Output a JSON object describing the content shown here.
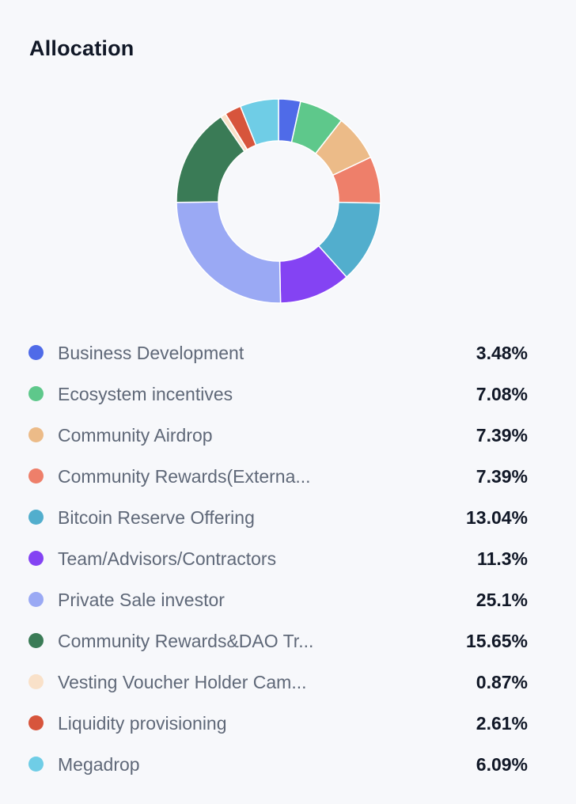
{
  "header": {
    "title": "Allocation"
  },
  "chart_data": {
    "type": "pie",
    "variant": "donut",
    "title": "Allocation",
    "unit": "%",
    "categories": [
      "Business Development",
      "Ecosystem incentives",
      "Community Airdrop",
      "Community Rewards(Externa...",
      "Bitcoin Reserve Offering",
      "Team/Advisors/Contractors",
      "Private Sale investor",
      "Community Rewards&DAO Tr...",
      "Vesting Voucher Holder Cam...",
      "Liquidity provisioning",
      "Megadrop"
    ],
    "values": [
      3.48,
      7.08,
      7.39,
      7.39,
      13.04,
      11.3,
      25.1,
      15.65,
      0.87,
      2.61,
      6.09
    ],
    "value_labels": [
      "3.48%",
      "7.08%",
      "7.39%",
      "7.39%",
      "13.04%",
      "11.3%",
      "25.1%",
      "15.65%",
      "0.87%",
      "2.61%",
      "6.09%"
    ],
    "colors": [
      "#4f6be8",
      "#5ec88b",
      "#ecbb88",
      "#ee7f6a",
      "#52aecd",
      "#8443f3",
      "#9aa9f4",
      "#3a7b56",
      "#f9e1c9",
      "#d7553c",
      "#6fcde6"
    ],
    "legend_position": "bottom"
  }
}
